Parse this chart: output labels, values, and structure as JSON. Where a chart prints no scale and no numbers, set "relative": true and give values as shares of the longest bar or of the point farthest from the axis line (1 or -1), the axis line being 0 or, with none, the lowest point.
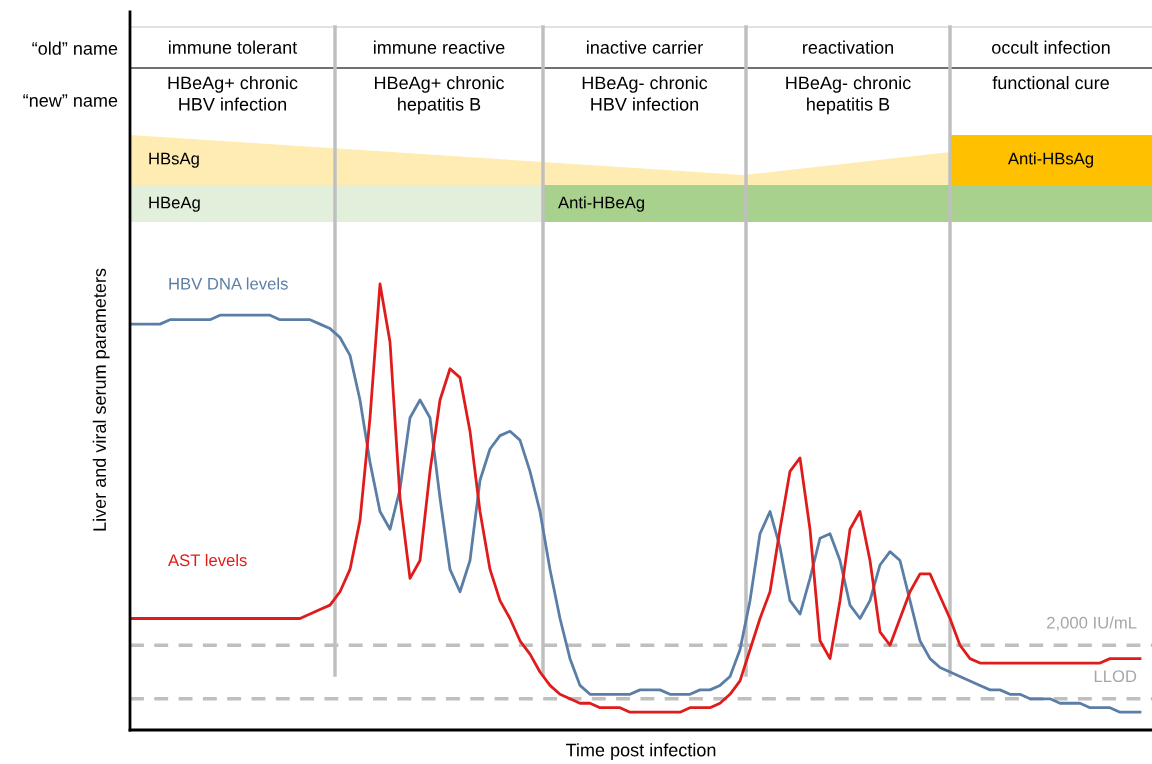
{
  "chart_data": {
    "type": "line",
    "relative": true,
    "xlabel": "Time post infection",
    "ylabel": "Liver and viral serum parameters",
    "categories": [
      null,
      null,
      null,
      null,
      null,
      null,
      null,
      null,
      null,
      null,
      null,
      null,
      null,
      null,
      null,
      null,
      null,
      null,
      null,
      null,
      null,
      null,
      null,
      null,
      null,
      null,
      null,
      null,
      null,
      null,
      null,
      null,
      null,
      null,
      null,
      null,
      null,
      null,
      null,
      null,
      null,
      null,
      null,
      null,
      null,
      null,
      null,
      null,
      null,
      null,
      null,
      null,
      null,
      null,
      null,
      null,
      null,
      null,
      null,
      null,
      null,
      null,
      null,
      null,
      null,
      null,
      null,
      null,
      null,
      null,
      null,
      null,
      null,
      null,
      null,
      null,
      null,
      null,
      null,
      null,
      null,
      null,
      null,
      null,
      null,
      null,
      null,
      null,
      null,
      null,
      null,
      null,
      null,
      null,
      null,
      null,
      null,
      null,
      null,
      null,
      null,
      null
    ],
    "series": [
      {
        "name": "HBV DNA levels",
        "color": "#5a7ea6",
        "values": [
          0.91,
          0.91,
          0.91,
          0.91,
          0.92,
          0.92,
          0.92,
          0.92,
          0.92,
          0.93,
          0.93,
          0.93,
          0.93,
          0.93,
          0.93,
          0.92,
          0.92,
          0.92,
          0.92,
          0.91,
          0.9,
          0.88,
          0.84,
          0.74,
          0.6,
          0.49,
          0.45,
          0.54,
          0.7,
          0.74,
          0.7,
          0.52,
          0.36,
          0.31,
          0.38,
          0.56,
          0.63,
          0.66,
          0.67,
          0.65,
          0.58,
          0.49,
          0.36,
          0.25,
          0.16,
          0.1,
          0.08,
          0.08,
          0.08,
          0.08,
          0.08,
          0.09,
          0.09,
          0.09,
          0.08,
          0.08,
          0.08,
          0.09,
          0.09,
          0.1,
          0.12,
          0.18,
          0.29,
          0.44,
          0.49,
          0.41,
          0.29,
          0.26,
          0.34,
          0.43,
          0.44,
          0.38,
          0.28,
          0.25,
          0.29,
          0.37,
          0.4,
          0.38,
          0.29,
          0.2,
          0.16,
          0.14,
          0.13,
          0.12,
          0.11,
          0.1,
          0.09,
          0.09,
          0.08,
          0.08,
          0.07,
          0.07,
          0.07,
          0.06,
          0.06,
          0.06,
          0.05,
          0.05,
          0.05,
          0.04,
          0.04,
          0.04
        ]
      },
      {
        "name": "AST levels",
        "color": "#e01b1b",
        "values": [
          0.25,
          0.25,
          0.25,
          0.25,
          0.25,
          0.25,
          0.25,
          0.25,
          0.25,
          0.25,
          0.25,
          0.25,
          0.25,
          0.25,
          0.25,
          0.25,
          0.25,
          0.25,
          0.26,
          0.27,
          0.28,
          0.31,
          0.36,
          0.47,
          0.7,
          1.0,
          0.87,
          0.52,
          0.34,
          0.38,
          0.58,
          0.74,
          0.81,
          0.79,
          0.67,
          0.49,
          0.36,
          0.29,
          0.25,
          0.2,
          0.17,
          0.13,
          0.1,
          0.08,
          0.07,
          0.06,
          0.06,
          0.05,
          0.05,
          0.05,
          0.04,
          0.04,
          0.04,
          0.04,
          0.04,
          0.04,
          0.05,
          0.05,
          0.05,
          0.06,
          0.08,
          0.11,
          0.18,
          0.25,
          0.31,
          0.45,
          0.58,
          0.61,
          0.45,
          0.2,
          0.16,
          0.29,
          0.45,
          0.49,
          0.38,
          0.22,
          0.19,
          0.25,
          0.31,
          0.35,
          0.35,
          0.3,
          0.25,
          0.19,
          0.16,
          0.15,
          0.15,
          0.15,
          0.15,
          0.15,
          0.15,
          0.15,
          0.15,
          0.15,
          0.15,
          0.15,
          0.15,
          0.15,
          0.16,
          0.16,
          0.16,
          0.16
        ]
      }
    ],
    "ref_lines": [
      {
        "axis": "y",
        "value": 0.19,
        "label": "2,000 IU/mL",
        "color": "#bfbfbf",
        "line_style": "dashed"
      },
      {
        "axis": "y",
        "value": 0.07,
        "label": "LLOD",
        "color": "#bfbfbf",
        "line_style": "dashed"
      }
    ],
    "annotations": [
      "“old” name",
      "“new” name",
      "immune tolerant",
      "immune reactive",
      "inactive carrier",
      "reactivation",
      "occult infection",
      "HBeAg+ chronic\nHBV infection",
      "HBeAg+ chronic\nhepatitis B",
      "HBeAg- chronic\nHBV infection",
      "HBeAg- chronic\nhepatitis B",
      "functional cure",
      "HBsAg",
      "HBeAg",
      "Anti-HBeAg",
      "Anti-HBsAg"
    ],
    "legend": false,
    "grid": false,
    "marker": "none",
    "line_style": "solid"
  }
}
